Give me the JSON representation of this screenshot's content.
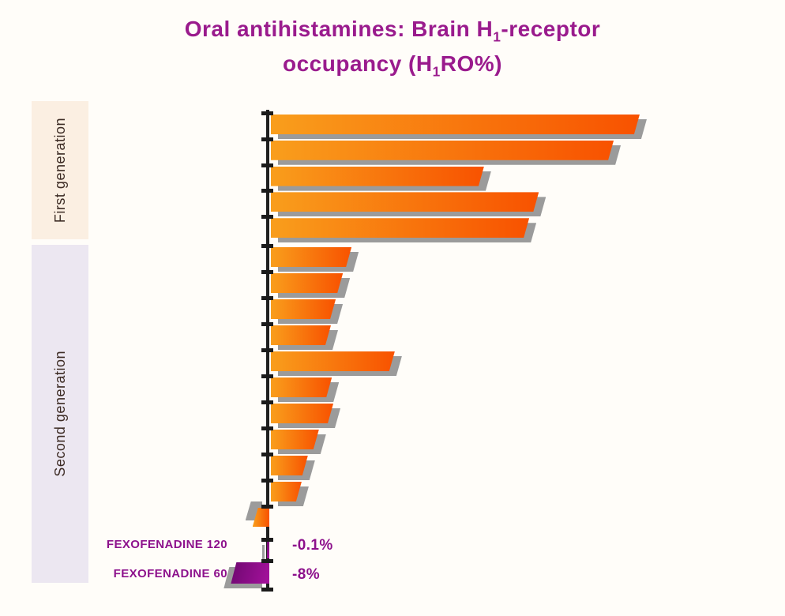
{
  "title": {
    "line1_pre": "Oral antihistamines: Brain H",
    "line1_sub": "1",
    "line1_post": "-receptor",
    "line2_pre": "occupancy (H",
    "line2_sub": "1",
    "line2_post": "RO%)"
  },
  "groups": [
    {
      "label": "First generation"
    },
    {
      "label": "Second generation"
    }
  ],
  "highlight_rows": [
    {
      "label": "FEXOFENADINE 120",
      "value": "-0.1%"
    },
    {
      "label": "FEXOFENADINE 60",
      "value": "-8%"
    }
  ],
  "colors": {
    "background": "#FFFDF9",
    "title_purple": "#9A1B8D",
    "bar_orange_start": "#F99E1C",
    "bar_orange_end": "#F85200",
    "bar_purple_start": "#6E0870",
    "bar_purple_end": "#A5119C",
    "bar_shadow_gray": "#9B9B9B",
    "band_first": "#FBEFE2",
    "band_second": "#ECE7F1",
    "axis_black": "#1F1F1F",
    "highlight_purple": "#8D118C"
  },
  "chart_data": {
    "type": "bar",
    "orientation": "horizontal",
    "title": "Oral antihistamines: Brain H1-receptor occupancy (H1RO%)",
    "unit": "% receptor occupancy",
    "xlim": [
      -10,
      80
    ],
    "grid": false,
    "legend": "none",
    "groups": [
      {
        "name": "First generation",
        "bar_color": "orange-gradient",
        "values": [
          76.8,
          71.4,
          44.4,
          55.8,
          53.8
        ]
      },
      {
        "name": "Second generation",
        "bar_color": "orange-gradient",
        "values": [
          16.8,
          15.0,
          13.5,
          12.5,
          25.8,
          12.7,
          13.0,
          10.0,
          7.7,
          6.4,
          -3.5
        ]
      },
      {
        "name": "Second generation (highlighted)",
        "bar_color": "purple-gradient",
        "categories": [
          "FEXOFENADINE 120",
          "FEXOFENADINE 60"
        ],
        "values": [
          -0.1,
          -8
        ],
        "value_labels": [
          "-0.1%",
          "-8%"
        ]
      }
    ]
  }
}
